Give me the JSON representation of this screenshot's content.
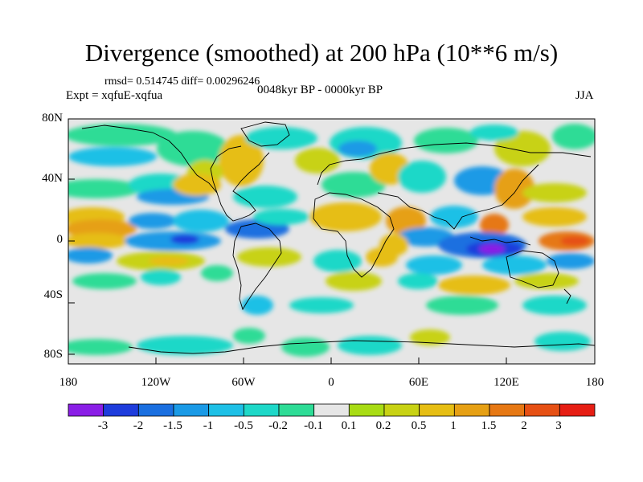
{
  "title": "Divergence (smoothed) at 200 hPa (10**6 m/s)",
  "stats": "rmsd= 0.514745 diff= 0.00296246",
  "experiment": "Expt = xqfuE-xqfua",
  "period": "0048kyr BP - 0000kyr BP",
  "season": "JJA",
  "map": {
    "background": "#e6e6e6",
    "lat_ticks": [
      "80N",
      "40N",
      "0",
      "40S",
      "80S"
    ],
    "lon_ticks": [
      "180",
      "120W",
      "60W",
      "0",
      "60E",
      "120E",
      "180"
    ]
  },
  "colorbar": {
    "colors": [
      "#8a1ee6",
      "#1e3cdc",
      "#1a6fe0",
      "#1a9ae6",
      "#1ec0e6",
      "#1ed8c8",
      "#2edc96",
      "#e6e6e6",
      "#a8dc14",
      "#c8d214",
      "#e6be14",
      "#e6a014",
      "#e67814",
      "#e65014",
      "#e61e14"
    ],
    "labels": [
      "-3",
      "-2",
      "-1.5",
      "-1",
      "-0.5",
      "-0.2",
      "-0.1",
      "0.1",
      "0.2",
      "0.5",
      "1",
      "1.5",
      "2",
      "3"
    ]
  }
}
